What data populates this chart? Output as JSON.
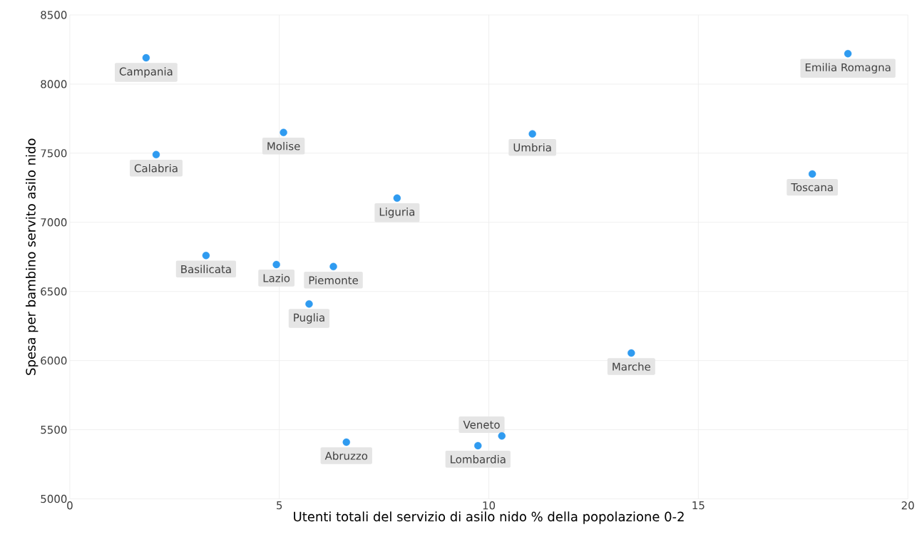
{
  "chart_data": {
    "type": "scatter",
    "xlabel": "Utenti totali del servizio di asilo nido % della popolazione 0-2",
    "ylabel": "Spesa per bambino servito asilo nido",
    "x": [
      1.82,
      2.06,
      5.1,
      11.04,
      18.57,
      17.72,
      7.81,
      3.25,
      4.93,
      6.29,
      5.71,
      13.4,
      10.31,
      9.74,
      6.6
    ],
    "values": [
      8190,
      7490,
      7650,
      7640,
      8220,
      7350,
      7175,
      6760,
      6695,
      6680,
      6410,
      6055,
      5455,
      5385,
      5410
    ],
    "color": "#2f9bf0",
    "grid": true,
    "xlim": [
      0,
      20
    ],
    "ylim": [
      5000,
      8500
    ],
    "xticks": [
      0,
      5,
      10,
      15,
      20
    ],
    "yticks": [
      5000,
      5500,
      6000,
      6500,
      7000,
      7500,
      8000,
      8500
    ],
    "annotations": [
      {
        "text": "Campania",
        "x": 1.82,
        "y": 8190
      },
      {
        "text": "Calabria",
        "x": 2.06,
        "y": 7490
      },
      {
        "text": "Molise",
        "x": 5.1,
        "y": 7650
      },
      {
        "text": "Umbria",
        "x": 11.04,
        "y": 7640
      },
      {
        "text": "Emilia Romagna",
        "x": 18.57,
        "y": 8220
      },
      {
        "text": "Toscana",
        "x": 17.72,
        "y": 7350
      },
      {
        "text": "Liguria",
        "x": 7.81,
        "y": 7175
      },
      {
        "text": "Basilicata",
        "x": 3.25,
        "y": 6760
      },
      {
        "text": "Lazio",
        "x": 4.93,
        "y": 6695
      },
      {
        "text": "Piemonte",
        "x": 6.29,
        "y": 6680
      },
      {
        "text": "Puglia",
        "x": 5.71,
        "y": 6410
      },
      {
        "text": "Marche",
        "x": 13.4,
        "y": 6055
      },
      {
        "text": "Veneto",
        "x": 10.31,
        "y": 5455
      },
      {
        "text": "Lombardia",
        "x": 9.74,
        "y": 5385
      },
      {
        "text": "Abruzzo",
        "x": 6.6,
        "y": 5410
      }
    ]
  }
}
